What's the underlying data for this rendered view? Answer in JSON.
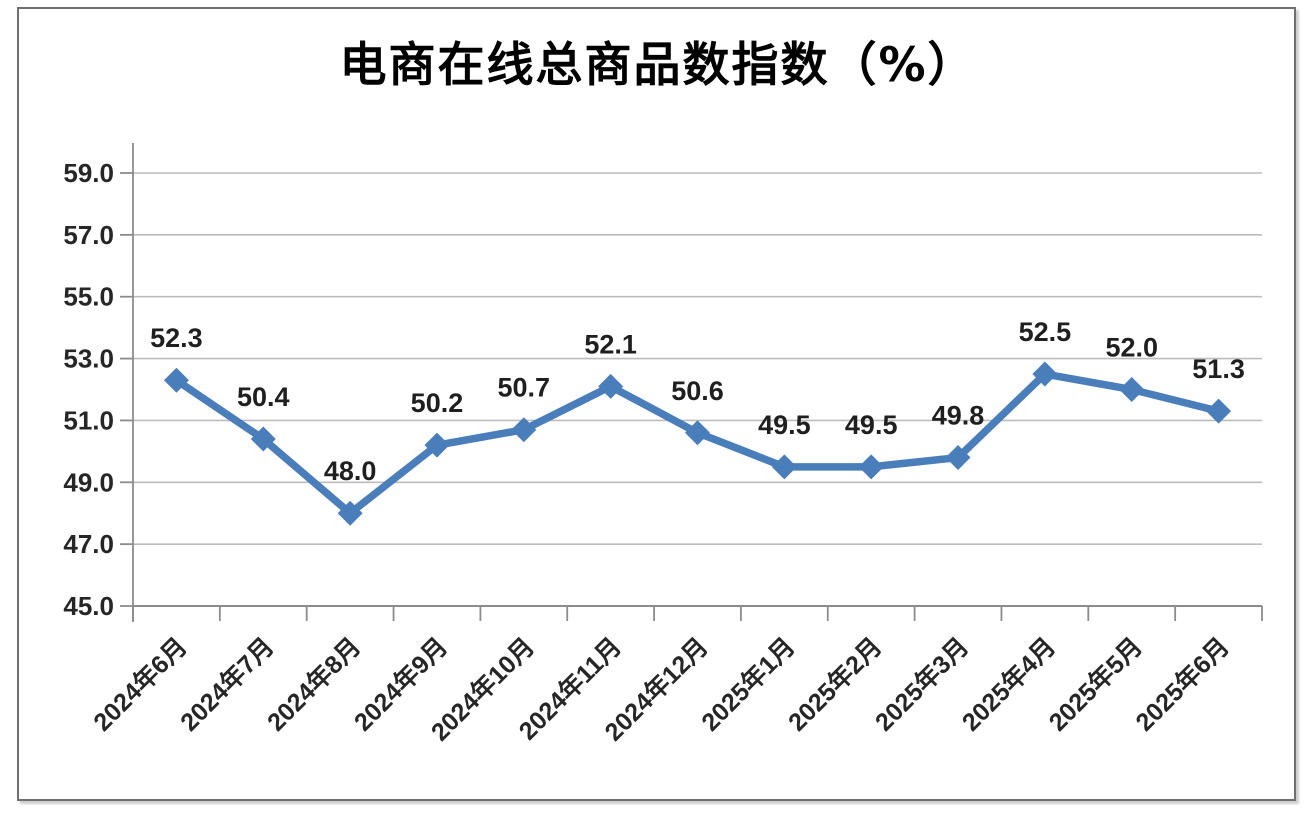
{
  "chart_data": {
    "type": "line",
    "title": "电商在线总商品数指数（%）",
    "categories": [
      "2024年6月",
      "2024年7月",
      "2024年8月",
      "2024年9月",
      "2024年10月",
      "2024年11月",
      "2024年12月",
      "2025年1月",
      "2025年2月",
      "2025年3月",
      "2025年4月",
      "2025年5月",
      "2025年6月"
    ],
    "values": [
      52.3,
      50.4,
      48.0,
      50.2,
      50.7,
      52.1,
      50.6,
      49.5,
      49.5,
      49.8,
      52.5,
      52.0,
      51.3
    ],
    "data_labels": [
      "52.3",
      "50.4",
      "48.0",
      "50.2",
      "50.7",
      "52.1",
      "50.6",
      "49.5",
      "49.5",
      "49.8",
      "52.5",
      "52.0",
      "51.3"
    ],
    "ylim": [
      45.0,
      59.0
    ],
    "ytick_step": 2.0,
    "ytick_labels": [
      "45.0",
      "47.0",
      "49.0",
      "51.0",
      "53.0",
      "55.0",
      "57.0",
      "59.0"
    ],
    "xlabel": "",
    "ylabel": "",
    "grid": "horizontal-only",
    "legend_position": "none",
    "marker": "diamond",
    "x_label_rotation_deg": -45,
    "colors": {
      "line": "#4a7ebb",
      "marker": "#4a7ebb",
      "label_text": "#1f1f1f",
      "tick_text": "#262626",
      "axis": "#8c8c8c",
      "gridline": "#bcbcbc",
      "frame_border": "#6f6f6f",
      "background": "#ffffff"
    }
  }
}
